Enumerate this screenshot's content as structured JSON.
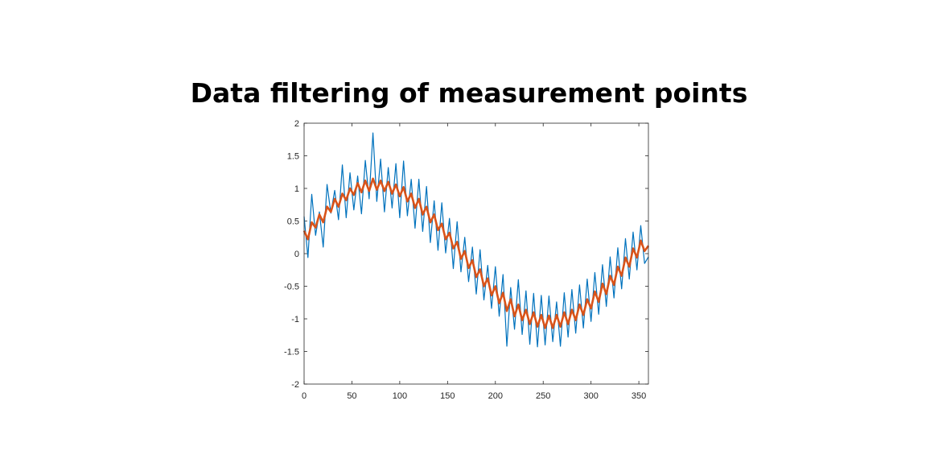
{
  "chart_data": {
    "type": "line",
    "title": "Data filtering of measurement points",
    "x": [
      0,
      4,
      8,
      12,
      16,
      20,
      24,
      28,
      32,
      36,
      40,
      44,
      48,
      52,
      56,
      60,
      64,
      68,
      72,
      76,
      80,
      84,
      88,
      92,
      96,
      100,
      104,
      108,
      112,
      116,
      120,
      124,
      128,
      132,
      136,
      140,
      144,
      148,
      152,
      156,
      160,
      164,
      168,
      172,
      176,
      180,
      184,
      188,
      192,
      196,
      200,
      204,
      208,
      212,
      216,
      220,
      224,
      228,
      232,
      236,
      240,
      244,
      248,
      252,
      256,
      260,
      264,
      268,
      272,
      276,
      280,
      284,
      288,
      292,
      296,
      300,
      304,
      308,
      312,
      316,
      320,
      324,
      328,
      332,
      336,
      340,
      344,
      348,
      352,
      356,
      360
    ],
    "series": [
      {
        "color": "#0072BD",
        "values": [
          0.57,
          -0.06,
          0.91,
          0.28,
          0.64,
          0.1,
          1.06,
          0.62,
          0.97,
          0.52,
          1.36,
          0.55,
          1.24,
          0.67,
          1.19,
          0.61,
          1.43,
          0.84,
          1.85,
          0.8,
          1.45,
          0.64,
          1.32,
          0.7,
          1.38,
          0.55,
          1.42,
          0.58,
          1.14,
          0.39,
          1.14,
          0.34,
          1.03,
          0.17,
          0.81,
          0.05,
          0.78,
          0.01,
          0.54,
          -0.23,
          0.49,
          -0.28,
          0.25,
          -0.43,
          0.1,
          -0.62,
          0.06,
          -0.71,
          -0.18,
          -0.84,
          -0.2,
          -0.96,
          -0.32,
          -1.42,
          -0.52,
          -1.16,
          -0.4,
          -1.24,
          -0.57,
          -1.39,
          -0.61,
          -1.43,
          -0.64,
          -1.4,
          -0.65,
          -1.35,
          -0.74,
          -1.42,
          -0.6,
          -1.28,
          -0.55,
          -1.22,
          -0.48,
          -1.14,
          -0.39,
          -1.04,
          -0.29,
          -0.93,
          -0.17,
          -0.81,
          -0.05,
          -0.68,
          0.09,
          -0.54,
          0.23,
          -0.39,
          0.33,
          -0.25,
          0.43,
          -0.15,
          -0.05
        ]
      },
      {
        "color": "#D95319",
        "values": [
          0.35,
          0.22,
          0.48,
          0.4,
          0.6,
          0.48,
          0.72,
          0.64,
          0.84,
          0.72,
          0.92,
          0.82,
          1.0,
          0.9,
          1.08,
          0.94,
          1.12,
          0.96,
          1.15,
          0.98,
          1.12,
          0.96,
          1.1,
          0.92,
          1.06,
          0.88,
          1.02,
          0.8,
          0.92,
          0.7,
          0.84,
          0.6,
          0.72,
          0.48,
          0.6,
          0.36,
          0.46,
          0.22,
          0.32,
          0.08,
          0.18,
          -0.08,
          0.04,
          -0.22,
          -0.1,
          -0.36,
          -0.24,
          -0.5,
          -0.38,
          -0.64,
          -0.5,
          -0.76,
          -0.6,
          -0.88,
          -0.7,
          -0.96,
          -0.78,
          -1.02,
          -0.86,
          -1.08,
          -0.9,
          -1.12,
          -0.94,
          -1.14,
          -0.95,
          -1.14,
          -0.94,
          -1.12,
          -0.9,
          -1.08,
          -0.86,
          -1.02,
          -0.78,
          -0.94,
          -0.7,
          -0.84,
          -0.58,
          -0.74,
          -0.46,
          -0.62,
          -0.34,
          -0.48,
          -0.2,
          -0.34,
          -0.06,
          -0.2,
          0.08,
          -0.06,
          0.2,
          0.04,
          0.12
        ]
      }
    ],
    "xlim": [
      0,
      360
    ],
    "xticks": [
      0,
      50,
      100,
      150,
      200,
      250,
      300,
      350
    ],
    "ylim": [
      -2,
      2
    ],
    "yticks": [
      -2,
      -1.5,
      -1,
      -0.5,
      0,
      0.5,
      1,
      1.5,
      2
    ],
    "grid": false
  }
}
